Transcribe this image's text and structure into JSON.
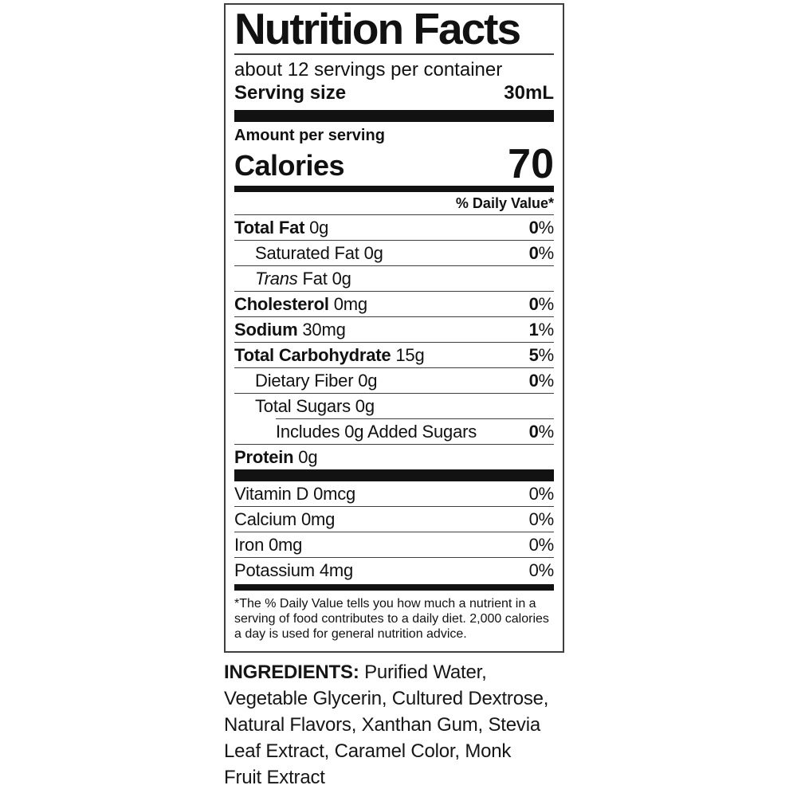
{
  "label": {
    "title": "Nutrition Facts",
    "servings_per_container": "about 12 servings per container",
    "serving_size": {
      "label": "Serving size",
      "value": "30mL"
    },
    "amount_per_serving": "Amount per serving",
    "calories": {
      "label": "Calories",
      "value": "70"
    },
    "daily_value_header": "% Daily Value*",
    "nutrient_rows": [
      {
        "name": "Total Fat",
        "style": "bold",
        "amount": "0g",
        "dv": "0%",
        "indent": 0
      },
      {
        "name": "Saturated Fat",
        "style": "normal",
        "amount": "0g",
        "dv": "0%",
        "indent": 1
      },
      {
        "name": "Trans",
        "style": "italic",
        "amount": "Fat 0g",
        "dv": "",
        "indent": 1
      },
      {
        "name": "Cholesterol",
        "style": "bold",
        "amount": "0mg",
        "dv": "0%",
        "indent": 0
      },
      {
        "name": "Sodium",
        "style": "bold",
        "amount": "30mg",
        "dv": "1%",
        "indent": 0
      },
      {
        "name": "Total Carbohydrate",
        "style": "bold",
        "amount": "15g",
        "dv": "5%",
        "indent": 0
      },
      {
        "name": "Dietary Fiber",
        "style": "normal",
        "amount": "0g",
        "dv": "0%",
        "indent": 1
      },
      {
        "name": "Total Sugars",
        "style": "normal",
        "amount": "0g",
        "dv": "",
        "indent": 1
      },
      {
        "name": "Includes 0g Added Sugars",
        "style": "normal",
        "amount": "",
        "dv": "0%",
        "indent": 2
      },
      {
        "name": "Protein",
        "style": "bold",
        "amount": "0g",
        "dv": "",
        "indent": 0
      }
    ],
    "micronutrient_rows": [
      {
        "name": "Vitamin D",
        "amount": "0mcg",
        "dv": "0%"
      },
      {
        "name": "Calcium",
        "amount": "0mg",
        "dv": "0%"
      },
      {
        "name": "Iron",
        "amount": "0mg",
        "dv": "0%"
      },
      {
        "name": "Potassium",
        "amount": "4mg",
        "dv": "0%"
      }
    ],
    "footnote": "*The % Daily Value tells you how much a nutrient in a serving of food contributes to a daily diet. 2,000 calories a day is used for general nutrition advice."
  },
  "ingredients": {
    "heading": "INGREDIENTS:",
    "first_line_rest": " Purified Water,",
    "lines": [
      "Vegetable Glycerin, Cultured Dextrose,",
      "Natural Flavors, Xanthan Gum, Stevia",
      "Leaf Extract, Caramel Color, Monk",
      "Fruit Extract"
    ]
  },
  "colors": {
    "text": "#111111",
    "bars": "#121212",
    "rules": "#3f3f3f",
    "background": "#ffffff"
  }
}
